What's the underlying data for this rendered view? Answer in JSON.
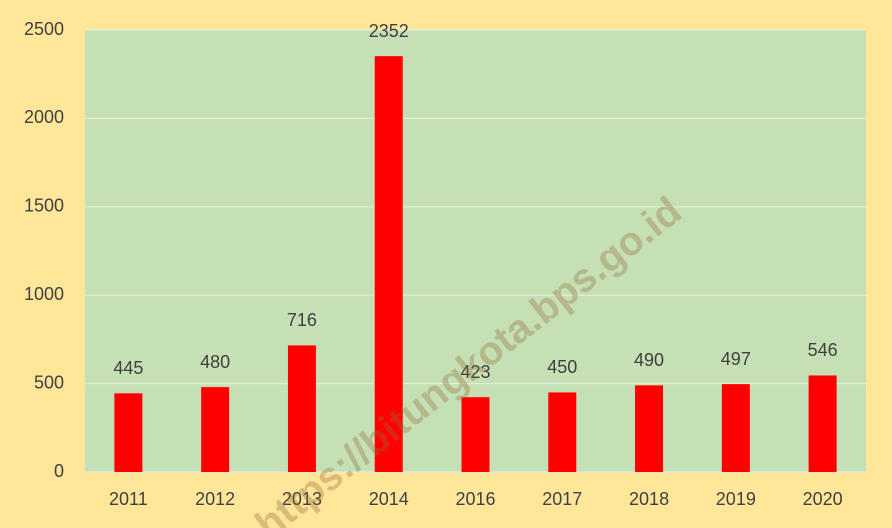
{
  "chart_data": {
    "type": "bar",
    "categories": [
      "2011",
      "2012",
      "2013",
      "2014",
      "2016",
      "2017",
      "2018",
      "2019",
      "2020"
    ],
    "values": [
      445,
      480,
      716,
      2352,
      423,
      450,
      490,
      497,
      546
    ],
    "color": "#ff0000",
    "ylim": [
      0,
      2500
    ],
    "yticks": [
      0,
      500,
      1000,
      1500,
      2000,
      2500
    ],
    "grid": true,
    "watermark": "https://bitungkota.bps.go.id"
  }
}
